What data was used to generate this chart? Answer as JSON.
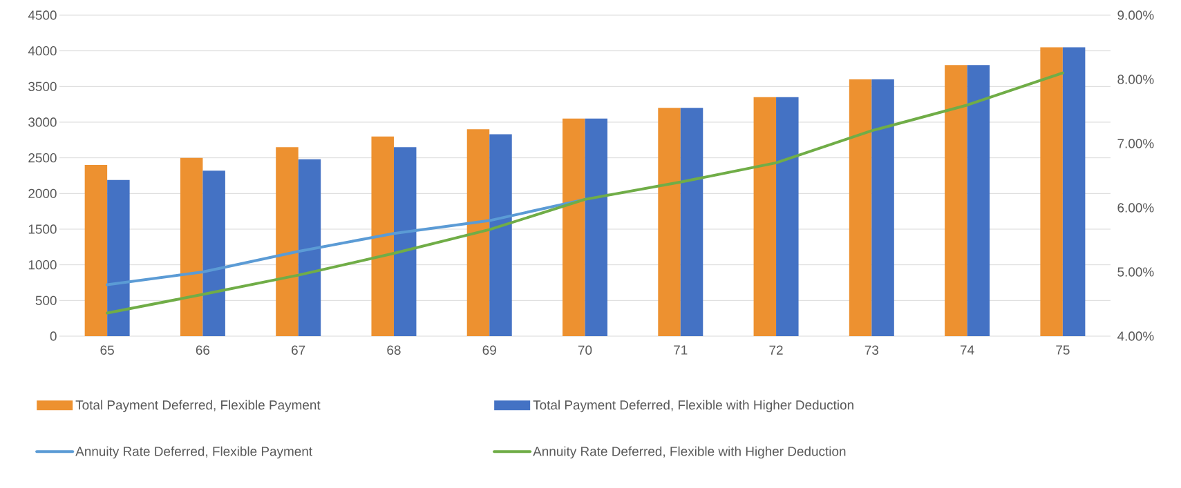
{
  "chart_data": {
    "type": "bar",
    "categories": [
      "65",
      "66",
      "67",
      "68",
      "69",
      "70",
      "71",
      "72",
      "73",
      "74",
      "75"
    ],
    "series": [
      {
        "name": "Total Payment Deferred, Flexible Payment",
        "color": "#ed9130",
        "values": [
          2400,
          2500,
          2650,
          2800,
          2900,
          3050,
          3200,
          3350,
          3600,
          3800,
          4050
        ]
      },
      {
        "name": "Total Payment Deferred, Flexible with Higher Deduction",
        "color": "#4472c4",
        "values": [
          2190,
          2320,
          2480,
          2650,
          2830,
          3050,
          3200,
          3350,
          3600,
          3800,
          4050
        ]
      },
      {
        "name": "Annuity Rate Deferred, Flexible Payment",
        "type": "line",
        "axis": "y2",
        "color": "#5b9bd5",
        "values": [
          4.8,
          5.0,
          5.32,
          5.6,
          5.8,
          6.13,
          null,
          null,
          null,
          null,
          null
        ]
      },
      {
        "name": "Annuity Rate Deferred, Flexible with Higher Deduction",
        "type": "line",
        "axis": "y2",
        "color": "#70ad47",
        "values": [
          4.36,
          4.65,
          4.95,
          5.29,
          5.66,
          6.13,
          6.4,
          6.7,
          7.2,
          7.6,
          8.1
        ]
      }
    ],
    "ylim": [
      0,
      4500
    ],
    "yticks": [
      0,
      500,
      1000,
      1500,
      2000,
      2500,
      3000,
      3500,
      4000,
      4500
    ],
    "y2lim": [
      4,
      9
    ],
    "y2ticks": [
      {
        "value": 4,
        "label": "4.00%"
      },
      {
        "value": 5,
        "label": "5.00%"
      },
      {
        "value": 6,
        "label": "6.00%"
      },
      {
        "value": 7,
        "label": "7.00%"
      },
      {
        "value": 8,
        "label": "8.00%"
      },
      {
        "value": 9,
        "label": "9.00%"
      }
    ],
    "grid": "y",
    "legend": "bottom"
  }
}
